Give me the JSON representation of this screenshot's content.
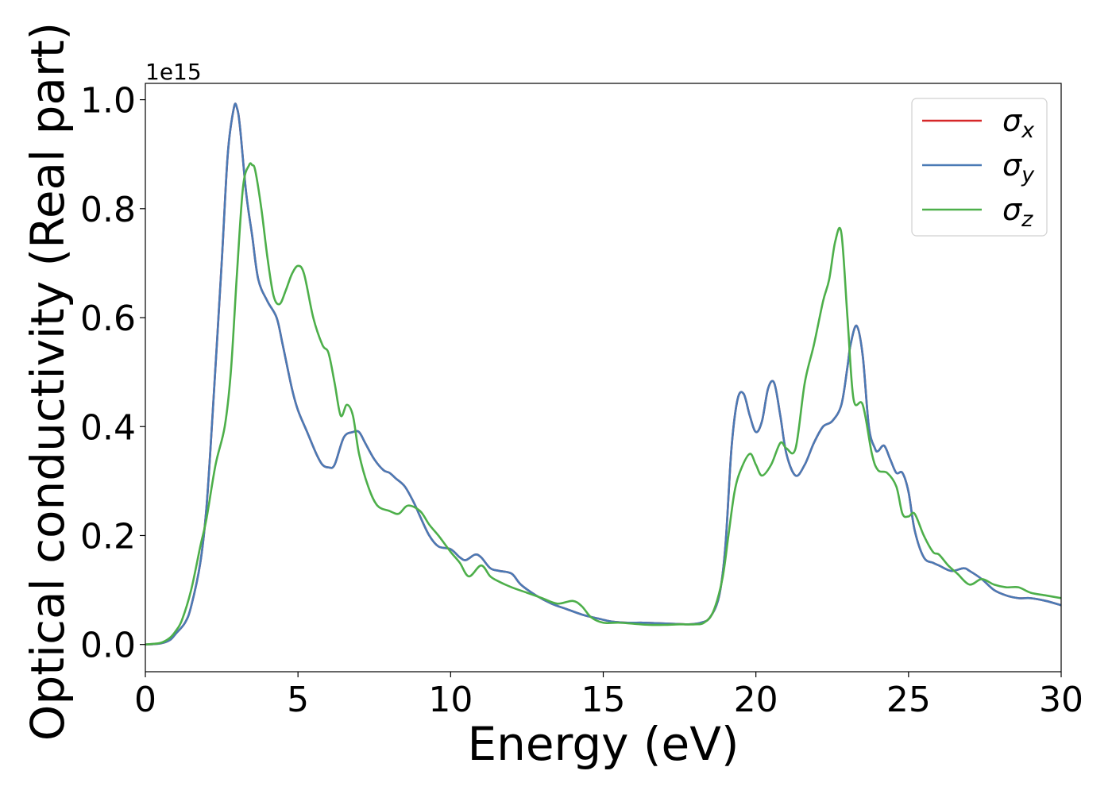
{
  "chart_data": {
    "type": "line",
    "xlabel": "Energy (eV)",
    "ylabel": "Optical conductivity (Real part)",
    "y_offset_label": "1e15",
    "xlim": [
      0,
      30
    ],
    "ylim": [
      -0.05,
      1.03
    ],
    "x_ticks": [
      0,
      5,
      10,
      15,
      20,
      25,
      30
    ],
    "x_tick_labels": [
      "0",
      "5",
      "10",
      "15",
      "20",
      "25",
      "30"
    ],
    "y_ticks": [
      0.0,
      0.2,
      0.4,
      0.6,
      0.8,
      1.0
    ],
    "y_tick_labels": [
      "0.0",
      "0.2",
      "0.4",
      "0.6",
      "0.8",
      "1.0"
    ],
    "grid": false,
    "legend_position": "top-right",
    "series": [
      {
        "name": "σx",
        "symbol": "σ",
        "subscript": "x",
        "color": "#d62728",
        "x": [
          0,
          0.5,
          0.8,
          1.0,
          1.3,
          1.5,
          1.8,
          2.0,
          2.2,
          2.5,
          2.7,
          2.9,
          3.0,
          3.1,
          3.3,
          3.5,
          3.7,
          4.0,
          4.3,
          4.5,
          4.8,
          5.0,
          5.3,
          5.6,
          5.8,
          6.0,
          6.2,
          6.5,
          6.8,
          7.0,
          7.2,
          7.5,
          7.8,
          8.0,
          8.2,
          8.5,
          8.8,
          9.0,
          9.3,
          9.6,
          10.0,
          10.3,
          10.5,
          10.8,
          11.0,
          11.3,
          11.6,
          12.0,
          12.3,
          12.8,
          13.3,
          13.8,
          14.3,
          14.8,
          15.3,
          15.8,
          16.3,
          16.8,
          17.3,
          17.8,
          18.2,
          18.5,
          18.8,
          19.0,
          19.2,
          19.4,
          19.6,
          19.8,
          20.0,
          20.2,
          20.4,
          20.6,
          20.8,
          21.0,
          21.3,
          21.6,
          21.9,
          22.2,
          22.5,
          22.8,
          23.0,
          23.1,
          23.3,
          23.5,
          23.7,
          23.9,
          24.0,
          24.2,
          24.4,
          24.6,
          24.8,
          25.0,
          25.2,
          25.5,
          25.8,
          26.0,
          26.4,
          26.8,
          27.0,
          27.4,
          27.8,
          28.2,
          28.6,
          29.0,
          29.5,
          30.0
        ],
        "y": [
          0.0,
          0.002,
          0.008,
          0.02,
          0.04,
          0.07,
          0.15,
          0.25,
          0.42,
          0.7,
          0.9,
          0.985,
          0.985,
          0.95,
          0.83,
          0.75,
          0.67,
          0.63,
          0.6,
          0.55,
          0.47,
          0.43,
          0.39,
          0.35,
          0.33,
          0.325,
          0.33,
          0.38,
          0.39,
          0.39,
          0.37,
          0.34,
          0.32,
          0.315,
          0.305,
          0.29,
          0.26,
          0.235,
          0.2,
          0.18,
          0.175,
          0.16,
          0.155,
          0.165,
          0.16,
          0.14,
          0.135,
          0.13,
          0.11,
          0.09,
          0.075,
          0.065,
          0.055,
          0.048,
          0.042,
          0.04,
          0.04,
          0.039,
          0.038,
          0.037,
          0.04,
          0.05,
          0.09,
          0.18,
          0.36,
          0.45,
          0.46,
          0.42,
          0.39,
          0.41,
          0.47,
          0.48,
          0.42,
          0.35,
          0.31,
          0.33,
          0.37,
          0.4,
          0.41,
          0.44,
          0.51,
          0.55,
          0.585,
          0.53,
          0.4,
          0.36,
          0.355,
          0.365,
          0.34,
          0.315,
          0.315,
          0.28,
          0.21,
          0.16,
          0.15,
          0.145,
          0.135,
          0.14,
          0.135,
          0.12,
          0.1,
          0.09,
          0.085,
          0.085,
          0.08,
          0.072
        ]
      },
      {
        "name": "σy",
        "symbol": "σ",
        "subscript": "y",
        "color": "#4a7ab5",
        "x": [
          0,
          0.5,
          0.8,
          1.0,
          1.3,
          1.5,
          1.8,
          2.0,
          2.2,
          2.5,
          2.7,
          2.9,
          3.0,
          3.1,
          3.3,
          3.5,
          3.7,
          4.0,
          4.3,
          4.5,
          4.8,
          5.0,
          5.3,
          5.6,
          5.8,
          6.0,
          6.2,
          6.5,
          6.8,
          7.0,
          7.2,
          7.5,
          7.8,
          8.0,
          8.2,
          8.5,
          8.8,
          9.0,
          9.3,
          9.6,
          10.0,
          10.3,
          10.5,
          10.8,
          11.0,
          11.3,
          11.6,
          12.0,
          12.3,
          12.8,
          13.3,
          13.8,
          14.3,
          14.8,
          15.3,
          15.8,
          16.3,
          16.8,
          17.3,
          17.8,
          18.2,
          18.5,
          18.8,
          19.0,
          19.2,
          19.4,
          19.6,
          19.8,
          20.0,
          20.2,
          20.4,
          20.6,
          20.8,
          21.0,
          21.3,
          21.6,
          21.9,
          22.2,
          22.5,
          22.8,
          23.0,
          23.1,
          23.3,
          23.5,
          23.7,
          23.9,
          24.0,
          24.2,
          24.4,
          24.6,
          24.8,
          25.0,
          25.2,
          25.5,
          25.8,
          26.0,
          26.4,
          26.8,
          27.0,
          27.4,
          27.8,
          28.2,
          28.6,
          29.0,
          29.5,
          30.0
        ],
        "y": [
          0.0,
          0.002,
          0.008,
          0.02,
          0.04,
          0.07,
          0.15,
          0.25,
          0.42,
          0.7,
          0.9,
          0.985,
          0.985,
          0.95,
          0.83,
          0.75,
          0.67,
          0.63,
          0.6,
          0.55,
          0.47,
          0.43,
          0.39,
          0.35,
          0.33,
          0.325,
          0.33,
          0.38,
          0.39,
          0.39,
          0.37,
          0.34,
          0.32,
          0.315,
          0.305,
          0.29,
          0.26,
          0.235,
          0.2,
          0.18,
          0.175,
          0.16,
          0.155,
          0.165,
          0.16,
          0.14,
          0.135,
          0.13,
          0.11,
          0.09,
          0.075,
          0.065,
          0.055,
          0.048,
          0.042,
          0.04,
          0.04,
          0.039,
          0.038,
          0.037,
          0.04,
          0.05,
          0.09,
          0.18,
          0.36,
          0.45,
          0.46,
          0.42,
          0.39,
          0.41,
          0.47,
          0.48,
          0.42,
          0.35,
          0.31,
          0.33,
          0.37,
          0.4,
          0.41,
          0.44,
          0.51,
          0.55,
          0.585,
          0.53,
          0.4,
          0.36,
          0.355,
          0.365,
          0.34,
          0.315,
          0.315,
          0.28,
          0.21,
          0.16,
          0.15,
          0.145,
          0.135,
          0.14,
          0.135,
          0.12,
          0.1,
          0.09,
          0.085,
          0.085,
          0.08,
          0.072
        ]
      },
      {
        "name": "σz",
        "symbol": "σ",
        "subscript": "z",
        "color": "#4daf4a",
        "x": [
          0,
          0.5,
          0.8,
          1.0,
          1.2,
          1.5,
          1.8,
          2.0,
          2.3,
          2.6,
          2.8,
          3.0,
          3.2,
          3.4,
          3.5,
          3.6,
          3.8,
          4.0,
          4.2,
          4.4,
          4.6,
          4.8,
          5.0,
          5.2,
          5.5,
          5.8,
          6.0,
          6.2,
          6.4,
          6.6,
          6.8,
          7.0,
          7.3,
          7.6,
          8.0,
          8.3,
          8.6,
          9.0,
          9.3,
          9.6,
          10.0,
          10.3,
          10.6,
          11.0,
          11.3,
          11.6,
          12.0,
          12.5,
          13.0,
          13.5,
          14.0,
          14.3,
          14.6,
          15.0,
          15.5,
          16.0,
          16.5,
          17.0,
          17.5,
          18.0,
          18.3,
          18.6,
          18.9,
          19.1,
          19.3,
          19.5,
          19.8,
          20.0,
          20.2,
          20.5,
          20.8,
          21.0,
          21.3,
          21.6,
          21.9,
          22.2,
          22.4,
          22.6,
          22.8,
          23.0,
          23.2,
          23.5,
          23.8,
          24.0,
          24.3,
          24.6,
          24.8,
          25.0,
          25.2,
          25.5,
          25.8,
          26.0,
          26.3,
          26.6,
          27.0,
          27.4,
          27.8,
          28.2,
          28.6,
          29.0,
          29.5,
          30.0
        ],
        "y": [
          0.0,
          0.003,
          0.012,
          0.025,
          0.045,
          0.1,
          0.18,
          0.23,
          0.33,
          0.4,
          0.5,
          0.68,
          0.84,
          0.88,
          0.88,
          0.87,
          0.8,
          0.71,
          0.64,
          0.625,
          0.65,
          0.68,
          0.695,
          0.68,
          0.6,
          0.55,
          0.535,
          0.48,
          0.42,
          0.44,
          0.42,
          0.35,
          0.29,
          0.255,
          0.245,
          0.24,
          0.255,
          0.245,
          0.22,
          0.2,
          0.17,
          0.15,
          0.125,
          0.145,
          0.125,
          0.115,
          0.105,
          0.095,
          0.085,
          0.075,
          0.08,
          0.07,
          0.05,
          0.04,
          0.04,
          0.038,
          0.036,
          0.036,
          0.037,
          0.037,
          0.04,
          0.06,
          0.12,
          0.2,
          0.28,
          0.32,
          0.35,
          0.33,
          0.31,
          0.33,
          0.37,
          0.36,
          0.36,
          0.48,
          0.55,
          0.63,
          0.67,
          0.74,
          0.755,
          0.6,
          0.45,
          0.44,
          0.35,
          0.32,
          0.315,
          0.29,
          0.24,
          0.235,
          0.24,
          0.2,
          0.17,
          0.165,
          0.145,
          0.13,
          0.11,
          0.12,
          0.11,
          0.105,
          0.105,
          0.095,
          0.09,
          0.085
        ]
      }
    ]
  }
}
